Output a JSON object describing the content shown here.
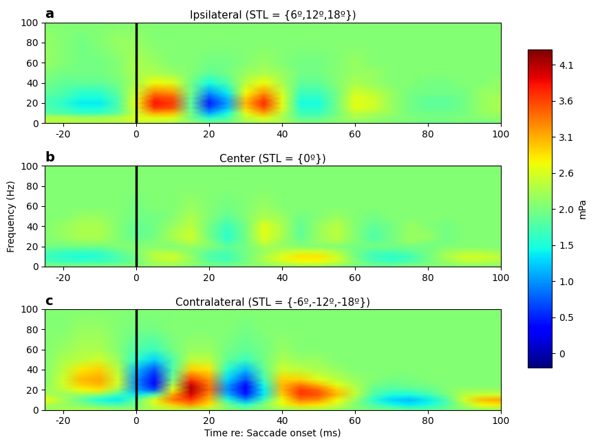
{
  "chart_data": [
    {
      "type": "heatmap",
      "panel": "a",
      "title": "Ipsilateral (STL = {6º,12º,18º})",
      "x": [
        -25,
        -20,
        -15,
        -10,
        -5,
        0,
        5,
        10,
        15,
        20,
        25,
        30,
        35,
        40,
        45,
        50,
        55,
        60,
        65,
        70,
        75,
        80,
        85,
        90,
        95,
        100
      ],
      "y": [
        0,
        5,
        10,
        15,
        20,
        25,
        30,
        40,
        50,
        60,
        80,
        100
      ],
      "cells": [
        [
          2.3,
          2.3,
          2.3,
          2.3,
          2.3,
          2.4,
          2.4,
          2.3,
          2.2,
          2.0,
          2.0,
          2.2,
          2.3,
          2.3,
          2.1,
          2.1,
          2.1,
          2.1,
          2.1,
          2.1,
          2.0,
          2.0,
          2.0,
          2.0,
          2.0,
          2.0
        ],
        [
          2.4,
          2.4,
          2.3,
          2.3,
          2.4,
          2.6,
          2.6,
          2.6,
          2.0,
          1.6,
          1.8,
          2.4,
          2.6,
          2.3,
          1.9,
          1.9,
          2.1,
          2.3,
          2.2,
          2.1,
          2.1,
          2.0,
          2.0,
          2.1,
          2.1,
          2.2
        ],
        [
          1.9,
          1.8,
          1.7,
          1.7,
          1.9,
          2.5,
          3.1,
          3.0,
          2.0,
          1.1,
          1.5,
          2.6,
          3.1,
          2.4,
          1.7,
          1.7,
          2.0,
          2.4,
          2.3,
          2.2,
          2.0,
          2.0,
          2.0,
          2.0,
          2.2,
          2.2
        ],
        [
          1.8,
          1.7,
          1.5,
          1.5,
          1.8,
          2.6,
          3.6,
          3.5,
          1.9,
          0.7,
          1.2,
          2.9,
          3.5,
          2.6,
          1.6,
          1.6,
          2.0,
          2.6,
          2.5,
          2.2,
          2.0,
          1.9,
          1.9,
          2.0,
          2.2,
          2.3
        ],
        [
          1.8,
          1.6,
          1.4,
          1.4,
          1.8,
          2.7,
          3.8,
          3.6,
          1.9,
          0.5,
          1.1,
          3.0,
          3.7,
          2.6,
          1.5,
          1.5,
          2.0,
          2.6,
          2.5,
          2.2,
          2.0,
          1.9,
          1.9,
          2.0,
          2.2,
          2.3
        ],
        [
          1.8,
          1.7,
          1.5,
          1.5,
          1.8,
          2.6,
          3.6,
          3.5,
          1.9,
          0.7,
          1.2,
          2.9,
          3.5,
          2.6,
          1.6,
          1.6,
          2.0,
          2.6,
          2.5,
          2.2,
          2.0,
          1.9,
          1.9,
          2.0,
          2.2,
          2.3
        ],
        [
          1.9,
          1.8,
          1.6,
          1.6,
          1.9,
          2.5,
          3.3,
          3.2,
          2.0,
          1.0,
          1.4,
          2.7,
          3.2,
          2.5,
          1.7,
          1.7,
          2.0,
          2.5,
          2.4,
          2.2,
          2.0,
          2.0,
          2.0,
          2.0,
          2.2,
          2.2
        ],
        [
          2.0,
          1.9,
          1.9,
          1.9,
          2.0,
          2.3,
          2.7,
          2.6,
          2.0,
          1.5,
          1.8,
          2.4,
          2.7,
          2.3,
          1.9,
          1.9,
          2.1,
          2.3,
          2.2,
          2.1,
          2.1,
          2.0,
          2.0,
          2.1,
          2.1,
          2.2
        ],
        [
          2.1,
          2.0,
          2.0,
          2.0,
          2.1,
          2.3,
          2.3,
          2.2,
          2.1,
          1.9,
          2.0,
          2.2,
          2.3,
          2.2,
          2.0,
          2.0,
          2.1,
          2.2,
          2.2,
          2.1,
          2.1,
          2.1,
          2.1,
          2.1,
          2.1,
          2.1
        ],
        [
          2.2,
          2.1,
          2.0,
          2.0,
          2.1,
          2.3,
          2.2,
          2.1,
          2.1,
          2.0,
          2.0,
          2.1,
          2.2,
          2.1,
          2.0,
          2.0,
          2.1,
          2.2,
          2.1,
          2.1,
          2.1,
          2.1,
          2.1,
          2.1,
          2.1,
          2.1
        ],
        [
          2.2,
          2.1,
          2.0,
          2.1,
          2.2,
          2.2,
          2.1,
          2.1,
          2.1,
          2.1,
          2.1,
          2.1,
          2.1,
          2.1,
          2.1,
          2.1,
          2.1,
          2.1,
          2.1,
          2.1,
          2.1,
          2.1,
          2.1,
          2.1,
          2.1,
          2.1
        ],
        [
          2.1,
          2.1,
          2.1,
          2.1,
          2.1,
          2.1,
          2.1,
          2.1,
          2.1,
          2.1,
          2.1,
          2.1,
          2.1,
          2.1,
          2.1,
          2.1,
          2.1,
          2.1,
          2.1,
          2.1,
          2.1,
          2.1,
          2.1,
          2.1,
          2.1,
          2.1
        ]
      ],
      "saccade_onset": 0,
      "xlim": [
        -25,
        100
      ],
      "xticks": [
        -20,
        0,
        20,
        40,
        60,
        80,
        100
      ],
      "ylim": [
        0,
        100
      ],
      "yticks": [
        0,
        20,
        40,
        60,
        80,
        100
      ]
    },
    {
      "type": "heatmap",
      "panel": "b",
      "title": "Center (STL = {0º})",
      "ylabel": "Frequency (Hz)",
      "x": [
        -25,
        -20,
        -15,
        -10,
        -5,
        0,
        5,
        10,
        15,
        20,
        25,
        30,
        35,
        40,
        45,
        50,
        55,
        60,
        65,
        70,
        75,
        80,
        85,
        90,
        95,
        100
      ],
      "y": [
        0,
        5,
        10,
        15,
        20,
        25,
        30,
        40,
        50,
        60,
        80,
        100
      ],
      "cells": [
        [
          2.1,
          2.1,
          2.1,
          2.1,
          2.1,
          2.1,
          2.2,
          2.2,
          2.1,
          2.0,
          2.0,
          2.1,
          2.1,
          2.2,
          2.2,
          2.2,
          2.1,
          2.0,
          2.0,
          2.0,
          2.1,
          2.1,
          2.1,
          2.1,
          2.1,
          2.1
        ],
        [
          1.8,
          1.7,
          1.7,
          1.7,
          1.8,
          2.0,
          2.3,
          2.4,
          2.2,
          1.9,
          1.8,
          2.0,
          2.3,
          2.5,
          2.7,
          2.7,
          2.5,
          2.1,
          1.8,
          1.7,
          1.8,
          2.0,
          2.2,
          2.4,
          2.4,
          2.3
        ],
        [
          1.7,
          1.6,
          1.5,
          1.6,
          1.8,
          2.0,
          2.4,
          2.5,
          2.2,
          1.8,
          1.7,
          2.0,
          2.3,
          2.6,
          2.8,
          2.8,
          2.5,
          2.0,
          1.7,
          1.6,
          1.7,
          2.0,
          2.3,
          2.5,
          2.5,
          2.4
        ],
        [
          1.8,
          1.7,
          1.7,
          1.7,
          1.9,
          2.1,
          2.3,
          2.3,
          2.1,
          1.9,
          1.8,
          2.0,
          2.2,
          2.4,
          2.5,
          2.5,
          2.3,
          2.0,
          1.8,
          1.8,
          1.9,
          2.0,
          2.2,
          2.3,
          2.3,
          2.2
        ],
        [
          2.0,
          2.0,
          2.0,
          2.0,
          2.1,
          2.1,
          2.1,
          2.1,
          2.2,
          2.1,
          1.9,
          2.0,
          2.3,
          2.2,
          2.1,
          2.1,
          2.1,
          2.0,
          2.0,
          2.0,
          2.0,
          2.0,
          2.1,
          2.1,
          2.1,
          2.1
        ],
        [
          2.1,
          2.1,
          2.2,
          2.2,
          2.1,
          2.0,
          2.1,
          2.2,
          2.4,
          2.1,
          1.7,
          2.0,
          2.5,
          2.2,
          2.0,
          2.2,
          2.3,
          2.1,
          1.9,
          2.0,
          2.2,
          2.1,
          2.0,
          2.1,
          2.1,
          2.1
        ],
        [
          2.1,
          2.2,
          2.3,
          2.3,
          2.1,
          1.9,
          2.0,
          2.3,
          2.5,
          2.0,
          1.6,
          2.0,
          2.6,
          2.3,
          1.9,
          2.2,
          2.4,
          2.1,
          1.8,
          2.0,
          2.2,
          2.2,
          2.0,
          2.1,
          2.1,
          2.1
        ],
        [
          2.1,
          2.2,
          2.3,
          2.3,
          2.1,
          1.9,
          2.0,
          2.2,
          2.4,
          2.0,
          1.7,
          2.0,
          2.6,
          2.3,
          1.9,
          2.2,
          2.4,
          2.1,
          1.9,
          2.0,
          2.2,
          2.1,
          2.0,
          2.1,
          2.1,
          2.1
        ],
        [
          2.1,
          2.1,
          2.2,
          2.2,
          2.1,
          2.0,
          2.0,
          2.1,
          2.3,
          2.1,
          1.9,
          2.1,
          2.3,
          2.2,
          2.0,
          2.1,
          2.2,
          2.1,
          2.0,
          2.1,
          2.1,
          2.1,
          2.1,
          2.1,
          2.1,
          2.1
        ],
        [
          2.1,
          2.1,
          2.1,
          2.1,
          2.1,
          2.0,
          2.1,
          2.1,
          2.2,
          2.1,
          2.0,
          2.1,
          2.2,
          2.1,
          2.1,
          2.1,
          2.1,
          2.1,
          2.1,
          2.1,
          2.1,
          2.1,
          2.1,
          2.1,
          2.1,
          2.1
        ],
        [
          2.1,
          2.1,
          2.1,
          2.1,
          2.1,
          2.1,
          2.1,
          2.1,
          2.1,
          2.1,
          2.1,
          2.1,
          2.1,
          2.1,
          2.1,
          2.1,
          2.1,
          2.1,
          2.1,
          2.1,
          2.1,
          2.1,
          2.1,
          2.1,
          2.1,
          2.1
        ],
        [
          2.1,
          2.1,
          2.1,
          2.1,
          2.1,
          2.1,
          2.1,
          2.1,
          2.1,
          2.1,
          2.1,
          2.1,
          2.1,
          2.1,
          2.1,
          2.1,
          2.1,
          2.1,
          2.1,
          2.1,
          2.1,
          2.1,
          2.1,
          2.1,
          2.1,
          2.1
        ]
      ],
      "saccade_onset": 0,
      "xlim": [
        -25,
        100
      ],
      "xticks": [
        -20,
        0,
        20,
        40,
        60,
        80,
        100
      ],
      "ylim": [
        0,
        100
      ],
      "yticks": [
        0,
        20,
        40,
        60,
        80,
        100
      ]
    },
    {
      "type": "heatmap",
      "panel": "c",
      "title": "Contralateral (STL = {-6º,-12º,-18º})",
      "xlabel": "Time re: Saccade onset (ms)",
      "x": [
        -25,
        -20,
        -15,
        -10,
        -5,
        0,
        5,
        10,
        15,
        20,
        25,
        30,
        35,
        40,
        45,
        50,
        55,
        60,
        65,
        70,
        75,
        80,
        85,
        90,
        95,
        100
      ],
      "y": [
        0,
        5,
        10,
        15,
        20,
        25,
        30,
        40,
        50,
        60,
        80,
        100
      ],
      "cells": [
        [
          2.2,
          2.3,
          2.3,
          2.3,
          2.2,
          2.2,
          2.3,
          2.4,
          2.4,
          2.3,
          2.1,
          2.0,
          2.1,
          2.2,
          2.3,
          2.3,
          2.2,
          2.1,
          2.0,
          2.0,
          1.9,
          1.9,
          2.0,
          2.1,
          2.2,
          2.2
        ],
        [
          2.3,
          2.2,
          2.1,
          1.9,
          1.8,
          2.0,
          2.5,
          2.9,
          3.2,
          2.8,
          2.0,
          1.6,
          2.1,
          2.6,
          2.9,
          2.8,
          2.5,
          2.1,
          1.8,
          1.5,
          1.4,
          1.5,
          1.8,
          2.3,
          2.7,
          2.8
        ],
        [
          2.7,
          2.3,
          1.9,
          1.5,
          1.4,
          1.9,
          2.6,
          3.3,
          3.6,
          3.0,
          1.6,
          1.0,
          1.7,
          2.7,
          3.3,
          3.2,
          2.7,
          2.2,
          1.6,
          1.3,
          1.2,
          1.4,
          1.8,
          2.5,
          3.0,
          3.1
        ],
        [
          2.3,
          2.2,
          2.2,
          2.1,
          1.7,
          1.4,
          1.8,
          3.1,
          3.9,
          3.2,
          1.2,
          0.5,
          1.4,
          2.9,
          3.6,
          3.5,
          3.0,
          2.4,
          1.8,
          1.5,
          1.5,
          1.7,
          2.0,
          2.4,
          2.5,
          2.5
        ],
        [
          2.2,
          2.4,
          2.7,
          2.8,
          2.2,
          1.1,
          0.7,
          2.6,
          4.1,
          3.4,
          1.0,
          0.3,
          1.4,
          3.0,
          3.6,
          3.4,
          2.9,
          2.4,
          1.9,
          1.8,
          1.8,
          1.9,
          2.1,
          2.2,
          2.2,
          2.2
        ],
        [
          2.1,
          2.5,
          2.9,
          3.0,
          2.5,
          1.0,
          0.4,
          2.3,
          4.0,
          3.3,
          1.1,
          0.4,
          1.5,
          3.0,
          3.3,
          3.0,
          2.6,
          2.3,
          2.0,
          1.9,
          2.0,
          2.0,
          2.1,
          2.1,
          2.1,
          2.1
        ],
        [
          2.1,
          2.5,
          3.0,
          3.1,
          2.5,
          1.0,
          0.4,
          2.0,
          3.6,
          3.2,
          1.3,
          0.7,
          1.7,
          2.9,
          2.9,
          2.6,
          2.4,
          2.2,
          2.1,
          2.0,
          2.0,
          2.1,
          2.1,
          2.1,
          2.1,
          2.1
        ],
        [
          2.1,
          2.4,
          2.8,
          2.9,
          2.4,
          1.2,
          0.7,
          1.8,
          2.9,
          2.8,
          1.6,
          1.2,
          1.9,
          2.5,
          2.4,
          2.3,
          2.2,
          2.1,
          2.1,
          2.1,
          2.1,
          2.1,
          2.1,
          2.1,
          2.1,
          2.1
        ],
        [
          2.1,
          2.3,
          2.4,
          2.5,
          2.2,
          1.6,
          1.3,
          1.8,
          2.4,
          2.4,
          1.9,
          1.7,
          2.0,
          2.3,
          2.2,
          2.2,
          2.1,
          2.1,
          2.1,
          2.1,
          2.1,
          2.1,
          2.1,
          2.1,
          2.1,
          2.1
        ],
        [
          2.1,
          2.2,
          2.3,
          2.3,
          2.1,
          1.8,
          1.7,
          2.0,
          2.2,
          2.2,
          2.0,
          1.9,
          2.0,
          2.2,
          2.1,
          2.1,
          2.1,
          2.1,
          2.1,
          2.1,
          2.1,
          2.1,
          2.1,
          2.1,
          2.1,
          2.1
        ],
        [
          2.1,
          2.1,
          2.2,
          2.2,
          2.1,
          2.0,
          2.0,
          2.1,
          2.1,
          2.1,
          2.1,
          2.0,
          2.1,
          2.1,
          2.1,
          2.1,
          2.1,
          2.1,
          2.1,
          2.1,
          2.1,
          2.1,
          2.1,
          2.1,
          2.1,
          2.1
        ],
        [
          2.1,
          2.1,
          2.1,
          2.1,
          2.1,
          2.1,
          2.1,
          2.1,
          2.1,
          2.1,
          2.1,
          2.1,
          2.1,
          2.1,
          2.1,
          2.1,
          2.1,
          2.1,
          2.1,
          2.1,
          2.1,
          2.1,
          2.1,
          2.1,
          2.1,
          2.1
        ]
      ],
      "saccade_onset": 0,
      "xlim": [
        -25,
        100
      ],
      "xticks": [
        -20,
        0,
        20,
        40,
        60,
        80,
        100
      ],
      "ylim": [
        0,
        100
      ],
      "yticks": [
        0,
        20,
        40,
        60,
        80,
        100
      ]
    }
  ],
  "colorbar": {
    "label": "mPa",
    "color": "jet",
    "range": [
      -0.2,
      4.3
    ],
    "ticks": [
      0,
      {
        "value": 0.51,
        "label": "0.5"
      },
      {
        "value": 1.02,
        "label": "1.0"
      },
      {
        "value": 1.53,
        "label": "1.5"
      },
      {
        "value": 2.04,
        "label": "2.0"
      },
      {
        "value": 2.55,
        "label": "2.6"
      },
      {
        "value": 3.06,
        "label": "3.1"
      },
      {
        "value": 3.57,
        "label": "3.6"
      },
      {
        "value": 4.08,
        "label": "4.1"
      }
    ]
  }
}
